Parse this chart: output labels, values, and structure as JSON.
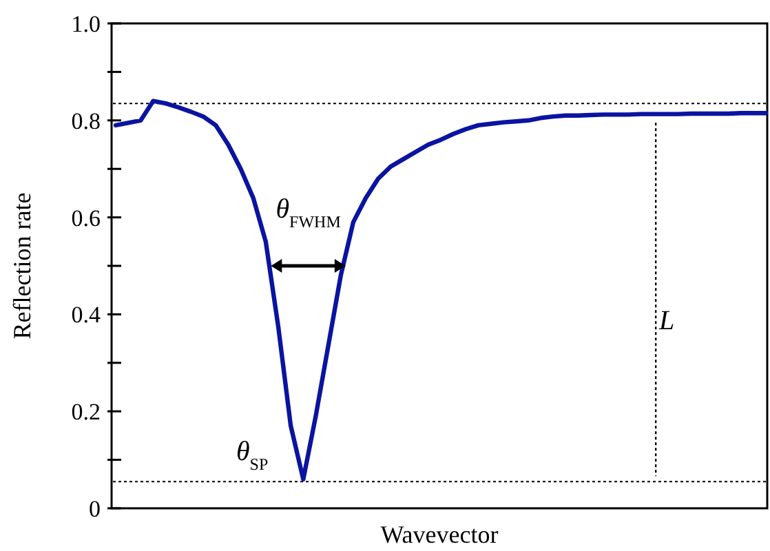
{
  "chart_data": {
    "type": "line",
    "xlabel": "Wavevector",
    "ylabel": "Reflection rate",
    "categories": [
      null,
      null,
      null,
      null,
      null,
      null,
      null,
      null,
      null,
      null,
      null,
      null,
      null,
      null,
      null,
      null,
      null,
      null,
      null,
      null,
      null,
      null,
      null,
      null,
      null,
      null,
      null,
      null,
      null,
      null,
      null,
      null,
      null,
      null,
      null,
      null,
      null,
      null,
      null,
      null,
      null,
      null,
      null,
      null,
      null,
      null,
      null,
      null,
      null,
      null,
      null,
      null,
      null
    ],
    "series": [
      {
        "color": "#0a14a0",
        "values": [
          0.79,
          0.795,
          0.8,
          0.84,
          0.835,
          0.827,
          0.818,
          0.808,
          0.79,
          0.75,
          0.7,
          0.64,
          0.55,
          0.375,
          0.17,
          0.06,
          0.19,
          0.335,
          0.48,
          0.59,
          0.64,
          0.68,
          0.705,
          0.72,
          0.735,
          0.75,
          0.76,
          0.772,
          0.782,
          0.79,
          0.793,
          0.796,
          0.798,
          0.8,
          0.805,
          0.808,
          0.81,
          0.81,
          0.811,
          0.812,
          0.812,
          0.812,
          0.813,
          0.813,
          0.813,
          0.813,
          0.814,
          0.814,
          0.814,
          0.814,
          0.815,
          0.815,
          0.815
        ]
      }
    ],
    "ylim": [
      0,
      1
    ],
    "yticks": [
      0,
      {
        "value": 0.1,
        "label": null
      },
      {
        "value": 0.2,
        "label": "0.2"
      },
      {
        "value": 0.3,
        "label": null
      },
      {
        "value": 0.4,
        "label": "0.4"
      },
      {
        "value": 0.5,
        "label": null
      },
      {
        "value": 0.6,
        "label": "0.6"
      },
      {
        "value": 0.7,
        "label": null
      },
      {
        "value": 0.8,
        "label": "0.8"
      },
      {
        "value": 0.9,
        "label": null
      },
      {
        "value": 1,
        "label": "1.0"
      }
    ],
    "tick_labels": "y",
    "ref_lines": [
      {
        "axis": "y",
        "value": 0.835,
        "line_style": "dotted"
      },
      {
        "axis": "y",
        "value": 0.055,
        "line_style": "dotted"
      }
    ],
    "annotations": [
      "θ$_{FWHM}$",
      "θ$_{SP}$",
      "L"
    ],
    "line_style": "solid"
  }
}
